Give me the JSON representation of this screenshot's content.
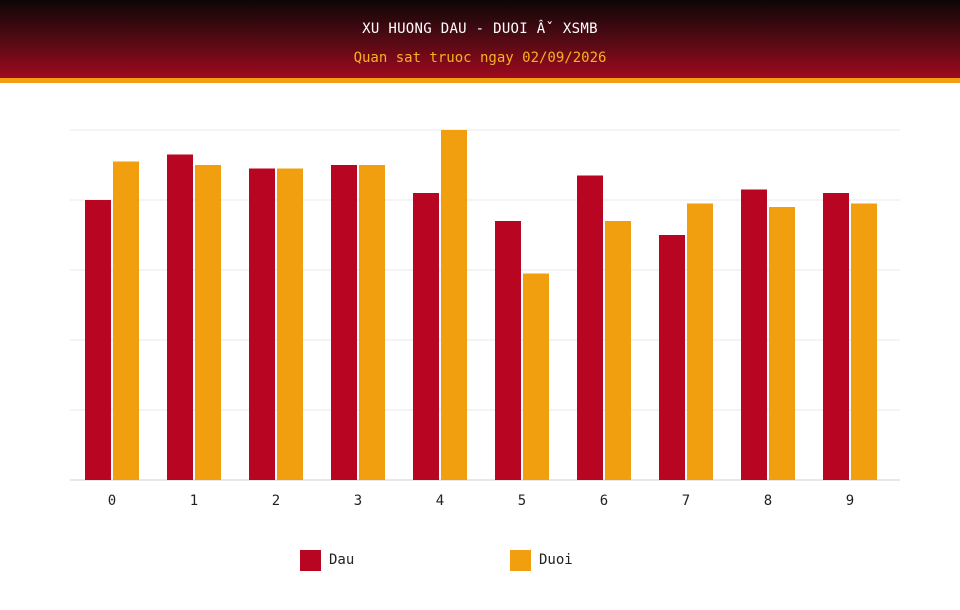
{
  "header": {
    "title": "XU HUONG DAU - DUOI Âˇ XSMB",
    "subtitle": "Quan sat truoc ngay 02/09/2026"
  },
  "chart_data": {
    "type": "bar",
    "title": "XU HUONG DAU - DUOI Âˇ XSMB",
    "subtitle": "Quan sat truoc ngay 02/09/2026",
    "categories": [
      "0",
      "1",
      "2",
      "3",
      "4",
      "5",
      "6",
      "7",
      "8",
      "9"
    ],
    "series": [
      {
        "name": "Dau",
        "color": "#b80622",
        "values": [
          8.0,
          9.3,
          8.9,
          9.0,
          8.2,
          7.4,
          8.7,
          7.0,
          8.3,
          8.2
        ]
      },
      {
        "name": "Duoi",
        "color": "#f29f0f",
        "values": [
          9.1,
          9.0,
          8.9,
          9.0,
          10.0,
          5.9,
          7.4,
          7.9,
          7.8,
          7.9
        ]
      }
    ],
    "ylim": [
      0,
      10
    ],
    "y_ticks": [
      0,
      2,
      4,
      6,
      8,
      10
    ],
    "y_tick_labels_shown": false,
    "grid": true,
    "legend": "bottom"
  }
}
